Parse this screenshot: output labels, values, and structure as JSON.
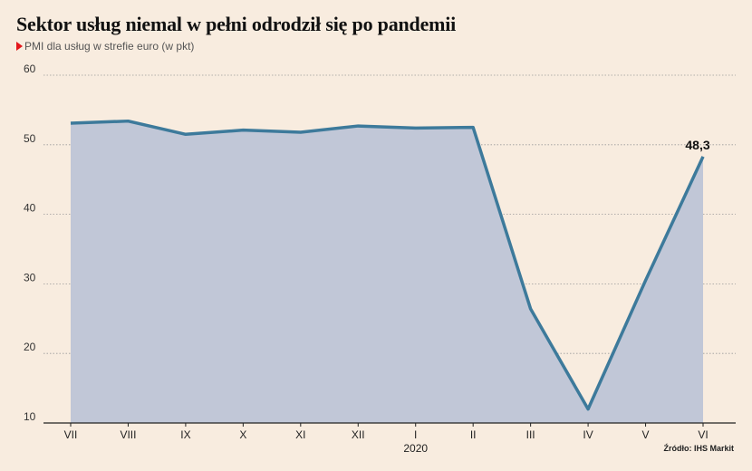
{
  "chart_data": {
    "type": "area",
    "title": "Sektor usług niemal w pełni odrodził się po pandemii",
    "subtitle": "PMI dla usług w strefie euro (w pkt)",
    "categories": [
      "VII",
      "VIII",
      "IX",
      "X",
      "XI",
      "XII",
      "I",
      "II",
      "III",
      "IV",
      "V",
      "VI"
    ],
    "year_label": "2020",
    "values": [
      53.1,
      53.4,
      51.5,
      52.1,
      51.8,
      52.7,
      52.4,
      52.5,
      26.4,
      12.0,
      30.5,
      48.3
    ],
    "ylim": [
      10,
      60
    ],
    "yticks": [
      10,
      20,
      30,
      40,
      50,
      60
    ],
    "annotation": {
      "index": 11,
      "label": "48,3"
    },
    "grid": true,
    "source": "Źródło: IHS Markit",
    "colors": {
      "line": "#3d7a9b",
      "area": "#c1c7d7",
      "grid": "#9a9a9a",
      "background": "#f8ecdf",
      "marker": "#e3161b"
    }
  }
}
